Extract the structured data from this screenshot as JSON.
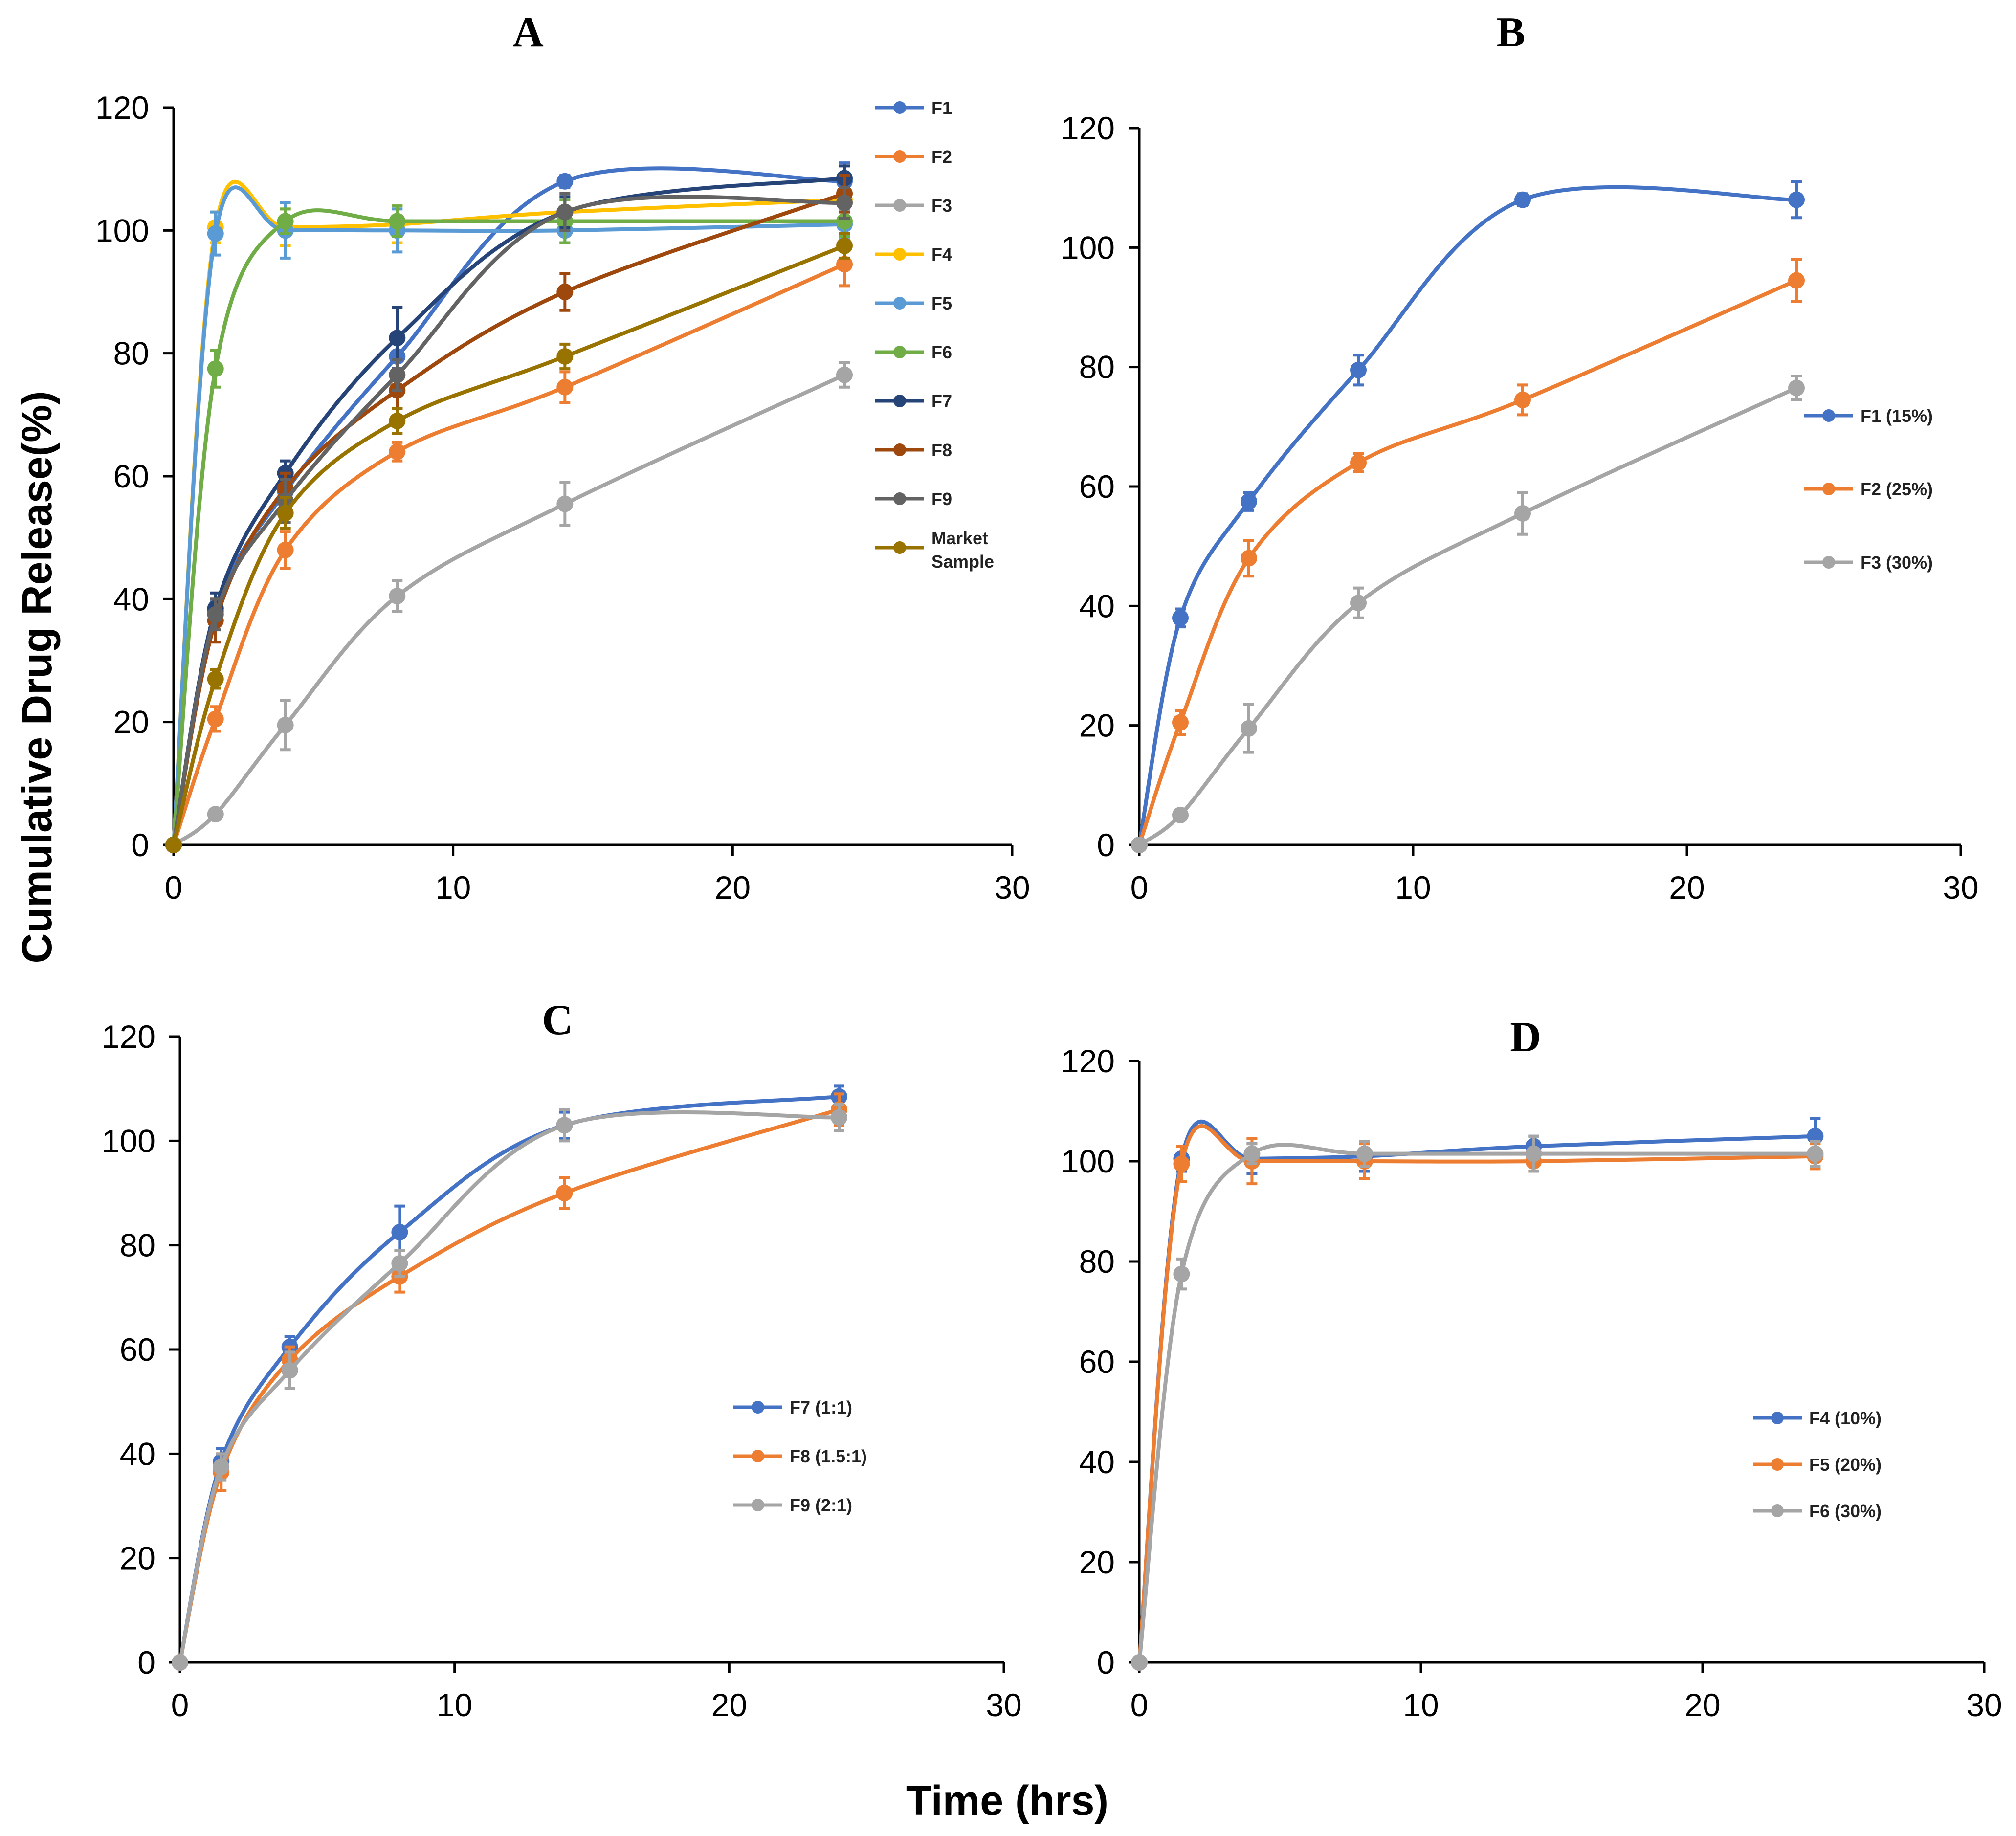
{
  "figure": {
    "ylabel": "Cumulative Drug Release(%)",
    "xlabel": "Time (hrs)"
  },
  "chart_data": [
    {
      "type": "line",
      "panel": "A",
      "title": "A",
      "xlim": [
        0,
        30
      ],
      "ylim": [
        0,
        120
      ],
      "xticks": [
        0,
        10,
        20,
        30
      ],
      "yticks": [
        0,
        20,
        40,
        60,
        80,
        100,
        120
      ],
      "legend_position": "right",
      "series": [
        {
          "name": "F1",
          "color": "#4472C4",
          "x": [
            0,
            1.5,
            4,
            8,
            14,
            24
          ],
          "y": [
            0,
            38,
            57.5,
            79.5,
            108,
            108
          ],
          "err": [
            0,
            1.5,
            1.5,
            2.5,
            1.0,
            3.0
          ]
        },
        {
          "name": "F2",
          "color": "#ED7D31",
          "x": [
            0,
            1.5,
            4,
            8,
            14,
            24
          ],
          "y": [
            0,
            20.5,
            48,
            64,
            74.5,
            94.5
          ],
          "err": [
            0,
            2.0,
            3.0,
            1.5,
            2.5,
            3.5
          ]
        },
        {
          "name": "F3",
          "color": "#A5A5A5",
          "x": [
            0,
            1.5,
            4,
            8,
            14,
            24
          ],
          "y": [
            0,
            5,
            19.5,
            40.5,
            55.5,
            76.5
          ],
          "err": [
            0,
            0.8,
            4.0,
            2.5,
            3.5,
            2.0
          ]
        },
        {
          "name": "F4",
          "color": "#FFC000",
          "x": [
            0,
            1.5,
            4,
            8,
            14,
            24
          ],
          "y": [
            0,
            100.5,
            100.5,
            101,
            103,
            105
          ],
          "err": [
            0,
            2.5,
            3.0,
            3.0,
            2.0,
            3.5
          ]
        },
        {
          "name": "F5",
          "color": "#5B9BD5",
          "x": [
            0,
            1.5,
            4,
            8,
            14,
            24
          ],
          "y": [
            0,
            99.5,
            100,
            100,
            100,
            101
          ],
          "err": [
            0,
            3.5,
            4.5,
            3.5,
            2.0,
            2.5
          ]
        },
        {
          "name": "F6",
          "color": "#70AD47",
          "x": [
            0,
            1.5,
            4,
            8,
            14,
            24
          ],
          "y": [
            0,
            77.5,
            101.5,
            101.5,
            101.5,
            101.5
          ],
          "err": [
            0,
            3.0,
            2.0,
            2.5,
            3.5,
            2.5
          ]
        },
        {
          "name": "F7",
          "color": "#264478",
          "x": [
            0,
            1.5,
            4,
            8,
            14,
            24
          ],
          "y": [
            0,
            38.5,
            60.5,
            82.5,
            103,
            108.5
          ],
          "err": [
            0,
            2.5,
            2.0,
            5.0,
            2.5,
            2.0
          ]
        },
        {
          "name": "F8",
          "color": "#9E480E",
          "x": [
            0,
            1.5,
            4,
            8,
            14,
            24
          ],
          "y": [
            0,
            36.5,
            58,
            74,
            90,
            106
          ],
          "err": [
            0,
            3.5,
            2.5,
            3.0,
            3.0,
            3.0
          ]
        },
        {
          "name": "F9",
          "color": "#636363",
          "x": [
            0,
            1.5,
            4,
            8,
            14,
            24
          ],
          "y": [
            0,
            37.5,
            56,
            76.5,
            103,
            104.5
          ],
          "err": [
            0,
            2.5,
            3.5,
            2.5,
            3.0,
            2.5
          ]
        },
        {
          "name": "Market Sample",
          "color": "#997300",
          "x": [
            0,
            1.5,
            4,
            8,
            14,
            24
          ],
          "y": [
            0,
            27,
            54,
            69,
            79.5,
            97.5
          ],
          "err": [
            0,
            1.5,
            2.5,
            2.0,
            2.0,
            2.0
          ]
        }
      ]
    },
    {
      "type": "line",
      "panel": "B",
      "title": "B",
      "xlim": [
        0,
        30
      ],
      "ylim": [
        0,
        120
      ],
      "xticks": [
        0,
        10,
        20,
        30
      ],
      "yticks": [
        0,
        20,
        40,
        60,
        80,
        100,
        120
      ],
      "legend_position": "right",
      "series": [
        {
          "name": "F1 (15%)",
          "color": "#4472C4",
          "x": [
            0,
            1.5,
            4,
            8,
            14,
            24
          ],
          "y": [
            0,
            38,
            57.5,
            79.5,
            108,
            108
          ],
          "err": [
            0,
            1.5,
            1.5,
            2.5,
            1.0,
            3.0
          ]
        },
        {
          "name": "F2 (25%)",
          "color": "#ED7D31",
          "x": [
            0,
            1.5,
            4,
            8,
            14,
            24
          ],
          "y": [
            0,
            20.5,
            48,
            64,
            74.5,
            94.5
          ],
          "err": [
            0,
            2.0,
            3.0,
            1.5,
            2.5,
            3.5
          ]
        },
        {
          "name": "F3 (30%)",
          "color": "#A5A5A5",
          "x": [
            0,
            1.5,
            4,
            8,
            14,
            24
          ],
          "y": [
            0,
            5,
            19.5,
            40.5,
            55.5,
            76.5
          ],
          "err": [
            0,
            0.8,
            4.0,
            2.5,
            3.5,
            2.0
          ]
        }
      ]
    },
    {
      "type": "line",
      "panel": "C",
      "title": "C",
      "xlim": [
        0,
        30
      ],
      "ylim": [
        0,
        120
      ],
      "xticks": [
        0,
        10,
        20,
        30
      ],
      "yticks": [
        0,
        20,
        40,
        60,
        80,
        100,
        120
      ],
      "legend_position": "right",
      "series": [
        {
          "name": "F7 (1:1)",
          "color": "#4472C4",
          "x": [
            0,
            1.5,
            4,
            8,
            14,
            24
          ],
          "y": [
            0,
            38.5,
            60.5,
            82.5,
            103,
            108.5
          ],
          "err": [
            0,
            2.5,
            2.0,
            5.0,
            2.5,
            2.0
          ]
        },
        {
          "name": "F8 (1.5:1)",
          "color": "#ED7D31",
          "x": [
            0,
            1.5,
            4,
            8,
            14,
            24
          ],
          "y": [
            0,
            36.5,
            58,
            74,
            90,
            106
          ],
          "err": [
            0,
            3.5,
            2.5,
            3.0,
            3.0,
            3.0
          ]
        },
        {
          "name": "F9 (2:1)",
          "color": "#A5A5A5",
          "x": [
            0,
            1.5,
            4,
            8,
            14,
            24
          ],
          "y": [
            0,
            37.5,
            56,
            76.5,
            103,
            104.5
          ],
          "err": [
            0,
            2.5,
            3.5,
            2.5,
            3.0,
            2.5
          ]
        }
      ]
    },
    {
      "type": "line",
      "panel": "D",
      "title": "D",
      "xlim": [
        0,
        30
      ],
      "ylim": [
        0,
        120
      ],
      "xticks": [
        0,
        10,
        20,
        30
      ],
      "yticks": [
        0,
        20,
        40,
        60,
        80,
        100,
        120
      ],
      "legend_position": "right",
      "series": [
        {
          "name": "F4 (10%)",
          "color": "#4472C4",
          "x": [
            0,
            1.5,
            4,
            8,
            14,
            24
          ],
          "y": [
            0,
            100.5,
            100.5,
            101,
            103,
            105
          ],
          "err": [
            0,
            2.5,
            3.0,
            3.0,
            2.0,
            3.5
          ]
        },
        {
          "name": "F5 (20%)",
          "color": "#ED7D31",
          "x": [
            0,
            1.5,
            4,
            8,
            14,
            24
          ],
          "y": [
            0,
            99.5,
            100,
            100,
            100,
            101
          ],
          "err": [
            0,
            3.5,
            4.5,
            3.5,
            2.0,
            2.5
          ]
        },
        {
          "name": "F6 (30%)",
          "color": "#A5A5A5",
          "x": [
            0,
            1.5,
            4,
            8,
            14,
            24
          ],
          "y": [
            0,
            77.5,
            101.5,
            101.5,
            101.5,
            101.5
          ],
          "err": [
            0,
            3.0,
            2.0,
            2.5,
            3.5,
            2.5
          ]
        }
      ]
    }
  ]
}
